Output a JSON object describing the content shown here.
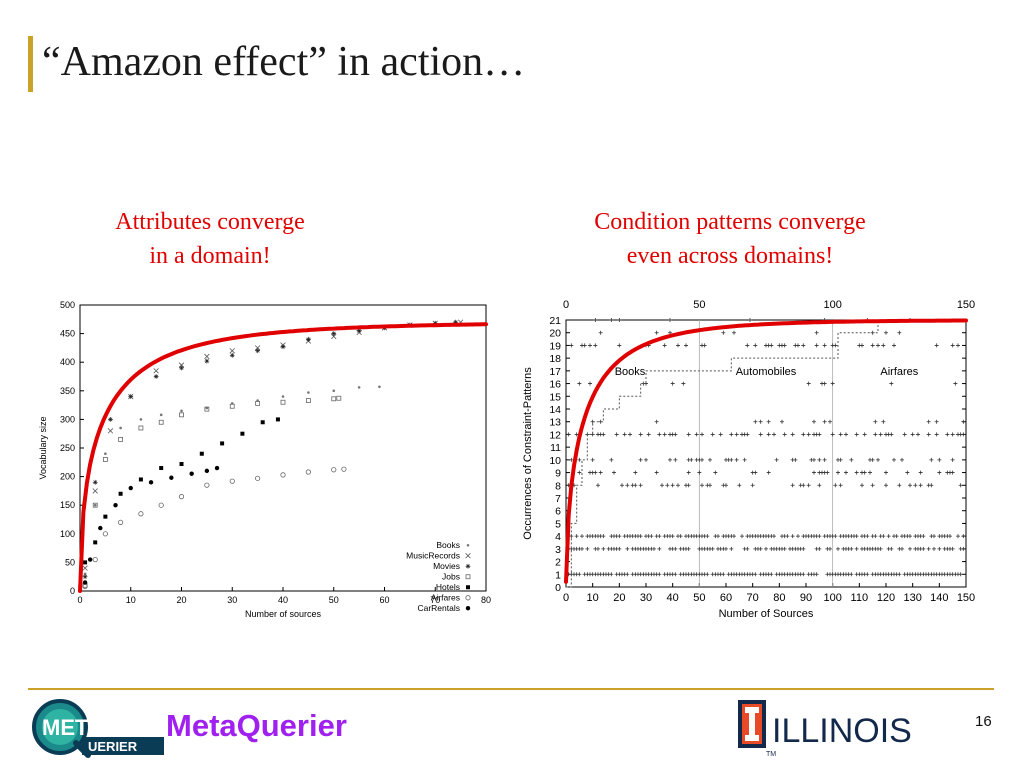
{
  "slide": {
    "title": "“Amazon effect” in action…",
    "captions": {
      "left": [
        "Attributes converge",
        "in a domain!"
      ],
      "right": [
        "Condition patterns converge",
        "even across domains!"
      ]
    },
    "brand": "MetaQuerier",
    "logo_text": {
      "top": "META",
      "bottom": "UERIER"
    },
    "university": "ILLINOIS",
    "university_tm": "TM",
    "page_number": "16",
    "colors": {
      "accent_line": "#C9A227",
      "caption_red": "#E00000",
      "brand_purple": "#A020F0",
      "curve_red": "#E00000"
    }
  },
  "chart_data": [
    {
      "type": "scatter",
      "xlabel": "Number of sources",
      "ylabel": "Vocabulary size",
      "xlim": [
        0,
        80
      ],
      "ylim": [
        0,
        500
      ],
      "xticks": [
        0,
        10,
        20,
        30,
        40,
        50,
        60,
        70,
        80
      ],
      "yticks": [
        0,
        50,
        100,
        150,
        200,
        250,
        300,
        350,
        400,
        450,
        500
      ],
      "legend_position": "bottom-right",
      "series": [
        {
          "name": "Books",
          "marker": "dot",
          "points": [
            [
              1,
              30
            ],
            [
              3,
              150
            ],
            [
              5,
              240
            ],
            [
              8,
              285
            ],
            [
              12,
              300
            ],
            [
              16,
              308
            ],
            [
              20,
              315
            ],
            [
              25,
              320
            ],
            [
              30,
              328
            ],
            [
              35,
              333
            ],
            [
              40,
              340
            ],
            [
              45,
              347
            ],
            [
              50,
              350
            ],
            [
              55,
              356
            ],
            [
              59,
              357
            ]
          ]
        },
        {
          "name": "MusicRecords",
          "marker": "x",
          "points": [
            [
              1,
              40
            ],
            [
              3,
              175
            ],
            [
              6,
              280
            ],
            [
              10,
              340
            ],
            [
              15,
              385
            ],
            [
              20,
              395
            ],
            [
              25,
              410
            ],
            [
              30,
              420
            ],
            [
              35,
              425
            ],
            [
              40,
              430
            ],
            [
              45,
              437
            ],
            [
              50,
              445
            ],
            [
              55,
              452
            ],
            [
              60,
              460
            ],
            [
              65,
              465
            ],
            [
              70,
              468
            ],
            [
              75,
              470
            ]
          ]
        },
        {
          "name": "Movies",
          "marker": "star",
          "points": [
            [
              1,
              25
            ],
            [
              3,
              190
            ],
            [
              6,
              300
            ],
            [
              10,
              340
            ],
            [
              15,
              375
            ],
            [
              20,
              390
            ],
            [
              25,
              402
            ],
            [
              30,
              412
            ],
            [
              35,
              420
            ],
            [
              40,
              427
            ],
            [
              45,
              440
            ],
            [
              50,
              450
            ],
            [
              55,
              455
            ],
            [
              60,
              460
            ],
            [
              65,
              465
            ],
            [
              70,
              468
            ],
            [
              74,
              470
            ]
          ]
        },
        {
          "name": "Jobs",
          "marker": "square",
          "points": [
            [
              1,
              10
            ],
            [
              3,
              150
            ],
            [
              5,
              230
            ],
            [
              8,
              265
            ],
            [
              12,
              285
            ],
            [
              16,
              295
            ],
            [
              20,
              308
            ],
            [
              25,
              318
            ],
            [
              30,
              323
            ],
            [
              35,
              328
            ],
            [
              40,
              330
            ],
            [
              45,
              333
            ],
            [
              50,
              336
            ],
            [
              51,
              337
            ]
          ]
        },
        {
          "name": "Hotels",
          "marker": "filled-square",
          "points": [
            [
              1,
              50
            ],
            [
              3,
              85
            ],
            [
              5,
              130
            ],
            [
              8,
              170
            ],
            [
              12,
              195
            ],
            [
              16,
              215
            ],
            [
              20,
              222
            ],
            [
              24,
              240
            ],
            [
              28,
              258
            ],
            [
              32,
              275
            ],
            [
              36,
              295
            ],
            [
              39,
              300
            ]
          ]
        },
        {
          "name": "Airfares",
          "marker": "circle",
          "points": [
            [
              1,
              8
            ],
            [
              3,
              55
            ],
            [
              5,
              100
            ],
            [
              8,
              120
            ],
            [
              12,
              135
            ],
            [
              16,
              150
            ],
            [
              20,
              165
            ],
            [
              25,
              185
            ],
            [
              30,
              192
            ],
            [
              35,
              197
            ],
            [
              40,
              203
            ],
            [
              45,
              208
            ],
            [
              50,
              212
            ],
            [
              52,
              213
            ]
          ]
        },
        {
          "name": "CarRentals",
          "marker": "filled-dot",
          "points": [
            [
              1,
              15
            ],
            [
              2,
              55
            ],
            [
              4,
              110
            ],
            [
              7,
              150
            ],
            [
              10,
              180
            ],
            [
              14,
              190
            ],
            [
              18,
              198
            ],
            [
              22,
              205
            ],
            [
              25,
              210
            ],
            [
              27,
              215
            ]
          ]
        }
      ]
    },
    {
      "type": "scatter",
      "xlabel": "Number of Sources",
      "ylabel": "Occurrences of Constraint-Patterns",
      "xlim": [
        0,
        150
      ],
      "ylim": [
        0,
        21
      ],
      "xticks": [
        0,
        10,
        20,
        30,
        40,
        50,
        60,
        70,
        80,
        90,
        100,
        110,
        120,
        130,
        140,
        150
      ],
      "top_xticks": [
        0,
        50,
        100,
        150
      ],
      "yticks": [
        0,
        1,
        2,
        3,
        4,
        5,
        6,
        7,
        8,
        9,
        10,
        11,
        12,
        13,
        14,
        15,
        16,
        17,
        18,
        19,
        20,
        21
      ],
      "domain_labels": [
        {
          "text": "Books",
          "x": 24,
          "y": 17
        },
        {
          "text": "Automobiles",
          "x": 75,
          "y": 17
        },
        {
          "text": "Airfares",
          "x": 125,
          "y": 17
        }
      ],
      "dividers_x": [
        50,
        100
      ],
      "cumulative_steps": [
        [
          0,
          0
        ],
        [
          2,
          5
        ],
        [
          4,
          8
        ],
        [
          6,
          10
        ],
        [
          8,
          12
        ],
        [
          10,
          13
        ],
        [
          14,
          14
        ],
        [
          20,
          15
        ],
        [
          28,
          16
        ],
        [
          30,
          17
        ],
        [
          60,
          17
        ],
        [
          62,
          18
        ],
        [
          100,
          18
        ],
        [
          102,
          20
        ],
        [
          115,
          20
        ],
        [
          117,
          21
        ],
        [
          150,
          21
        ]
      ]
    }
  ]
}
